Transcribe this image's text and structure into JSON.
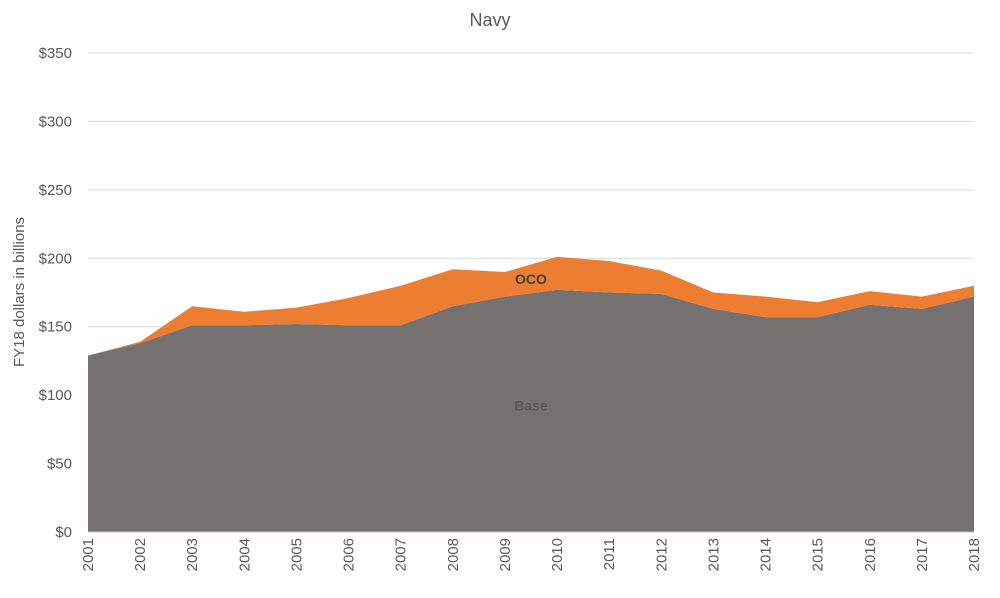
{
  "chart_data": {
    "type": "area",
    "stacked": true,
    "title": "Navy",
    "ylabel": "FY18 dollars in billions",
    "xlabel": "",
    "ylim": [
      0,
      350
    ],
    "yticks": [
      0,
      50,
      100,
      150,
      200,
      250,
      300,
      350
    ],
    "ytick_labels": [
      "$0",
      "$50",
      "$100",
      "$150",
      "$200",
      "$250",
      "$300",
      "$350"
    ],
    "grid": "horizontal",
    "legend": "none",
    "categories": [
      "2001",
      "2002",
      "2003",
      "2004",
      "2005",
      "2006",
      "2007",
      "2008",
      "2009",
      "2010",
      "2011",
      "2012",
      "2013",
      "2014",
      "2015",
      "2016",
      "2017",
      "2018"
    ],
    "series": [
      {
        "name": "Base",
        "color": "#767171",
        "values": [
          129,
          138,
          151,
          151,
          152,
          151,
          151,
          165,
          172,
          177,
          175,
          174,
          163,
          157,
          157,
          166,
          163,
          172
        ]
      },
      {
        "name": "OCO",
        "color": "#ED7D31",
        "values": [
          0,
          1,
          14,
          10,
          12,
          20,
          29,
          27,
          18,
          24,
          23,
          17,
          12,
          15,
          11,
          10,
          9,
          8
        ]
      }
    ],
    "annotations": [
      {
        "text": "OCO",
        "series": "OCO"
      },
      {
        "text": "Base",
        "series": "Base"
      }
    ]
  }
}
